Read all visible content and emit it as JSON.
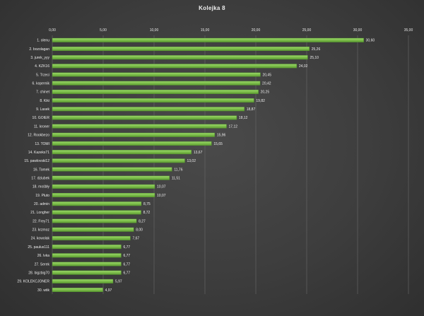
{
  "chart_data": {
    "type": "bar",
    "orientation": "horizontal",
    "title": "Kolejka  8",
    "xlim": [
      0,
      35
    ],
    "xticks": [
      "0,00",
      "5,00",
      "10,00",
      "15,00",
      "20,00",
      "25,00",
      "30,00",
      "35,00"
    ],
    "tick_values": [
      0,
      5,
      10,
      15,
      20,
      25,
      30,
      35
    ],
    "grid": true,
    "bar_color": "#7cbd4a",
    "categories": [
      "1. olenu",
      "2. bozolagan",
      "3. jurek_yyy",
      "4. KZK16",
      "5. Trzeci",
      "6. kopernik",
      "7. chinet",
      "8. Kiki",
      "9. Lasek",
      "10. GOIER",
      "11. kroner",
      "12. Rookbezo",
      "13. TOMI",
      "14. Kazeks71",
      "15. pawlovski12",
      "16. Tomek",
      "17. dziubek",
      "18. mośbły",
      "19. Pluto",
      "20. admin",
      "21. Longher",
      "22. Frey71",
      "23. krzmoz",
      "24. kowolak",
      "25. paulus111",
      "26. lvka",
      "27. Serek",
      "28. bigzbig70",
      "29. KOLEKCJONER",
      "30. wtik"
    ],
    "values": [
      30.6,
      25.26,
      25.1,
      24.02,
      20.45,
      20.42,
      20.25,
      19.82,
      18.87,
      18.12,
      17.12,
      15.96,
      15.65,
      13.67,
      13.02,
      11.76,
      11.51,
      10.07,
      10.07,
      8.75,
      8.72,
      8.27,
      8.0,
      7.67,
      6.77,
      6.77,
      6.77,
      6.77,
      5.97,
      4.97
    ],
    "value_labels": [
      "30,60",
      "25,26",
      "25,10",
      "24,02",
      "20,45",
      "20,42",
      "20,25",
      "19,82",
      "18,87",
      "18,12",
      "17,12",
      "15,96",
      "15,65",
      "13,67",
      "13,02",
      "11,76",
      "11,51",
      "10,07",
      "10,07",
      "8,75",
      "8,72",
      "8,27",
      "8,00",
      "7,67",
      "6,77",
      "6,77",
      "6,77",
      "6,77",
      "5,97",
      "4,97"
    ]
  }
}
